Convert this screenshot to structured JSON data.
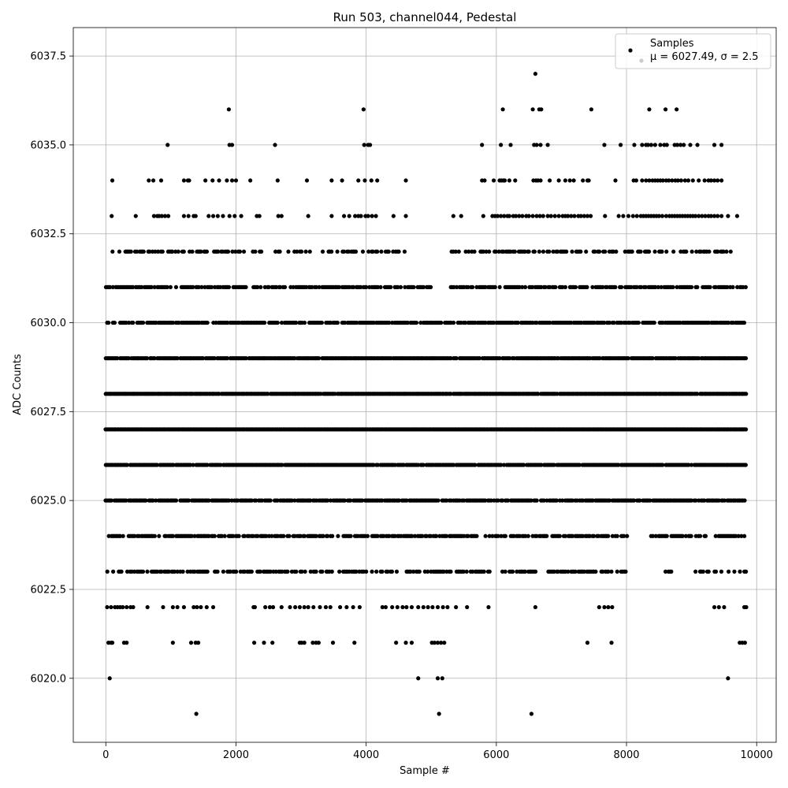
{
  "chart_data": {
    "type": "scatter",
    "title": "Run 503, channel044, Pedestal",
    "xlabel": "Sample #",
    "ylabel": "ADC Counts",
    "xlim": [
      -500,
      10300
    ],
    "ylim": [
      6018.2,
      6038.3
    ],
    "xticks": [
      0,
      2000,
      4000,
      6000,
      8000,
      10000
    ],
    "xtick_labels": [
      "0",
      "2000",
      "4000",
      "6000",
      "8000",
      "10000"
    ],
    "yticks": [
      6020.0,
      6022.5,
      6025.0,
      6027.5,
      6030.0,
      6032.5,
      6035.0,
      6037.5
    ],
    "ytick_labels": [
      "6020.0",
      "6022.5",
      "6025.0",
      "6027.5",
      "6030.0",
      "6032.5",
      "6035.0",
      "6037.5"
    ],
    "grid": true,
    "legend": {
      "position": "top-right",
      "series_label": "Samples",
      "stats_label": "μ = 6027.49, σ = 2.5"
    },
    "series": [
      {
        "name": "Samples",
        "color": "#000000",
        "x_range": [
          0,
          9850
        ],
        "levels": [
          {
            "y": 6019,
            "x": [
              1390,
              5120,
              6540
            ]
          },
          {
            "y": 6020,
            "x": [
              60,
              4800,
              5100,
              5170,
              9560
            ]
          },
          {
            "y": 6021,
            "x": [
              40,
              80,
              100,
              280,
              320,
              1030,
              1310,
              1380,
              1420,
              2280,
              2430,
              2560,
              2980,
              3010,
              3050,
              3180,
              3230,
              3270,
              3490,
              3820,
              4460,
              4610,
              4700,
              5010,
              5050,
              5100,
              5150,
              5200,
              7400,
              7770,
              9740,
              9780,
              9820
            ]
          },
          {
            "y": 6022,
            "x": [
              20,
              80,
              140,
              180,
              220,
              260,
              320,
              380,
              420,
              640,
              880,
              1030,
              1100,
              1200,
              1350,
              1400,
              1460,
              1550,
              1650,
              2270,
              2290,
              2450,
              2520,
              2570,
              2700,
              2830,
              2910,
              2980,
              3050,
              3110,
              3190,
              3290,
              3380,
              3450,
              3600,
              3700,
              3800,
              3900,
              4250,
              4300,
              4400,
              4480,
              4560,
              4620,
              4700,
              4800,
              4880,
              4950,
              5020,
              5100,
              5180,
              5250,
              5380,
              5550,
              5880,
              6600,
              7580,
              7660,
              7720,
              7780,
              9350,
              9420,
              9500,
              9810,
              9840
            ]
          },
          {
            "y": 6023,
            "x_span": [
              0,
              9850
            ],
            "density": 0.62,
            "gaps": [
              [
                5900,
                6080
              ],
              [
                6700,
                6780
              ],
              [
                8000,
                8580
              ],
              [
                8700,
                9000
              ]
            ]
          },
          {
            "y": 6024,
            "x_span": [
              0,
              9850
            ],
            "density": 0.7,
            "gaps": [
              [
                5720,
                5800
              ],
              [
                6150,
                6200
              ],
              [
                8020,
                8380
              ]
            ]
          },
          {
            "y": 6025,
            "x_span": [
              0,
              9850
            ],
            "density": 0.85,
            "gaps": [
              [
                9900,
                9950
              ]
            ]
          },
          {
            "y": 6026,
            "x_span": [
              0,
              9850
            ],
            "density": 0.95,
            "gaps": []
          },
          {
            "y": 6027,
            "x_span": [
              0,
              9850
            ],
            "density": 1.0,
            "gaps": []
          },
          {
            "y": 6028,
            "x_span": [
              0,
              9850
            ],
            "density": 0.98,
            "gaps": []
          },
          {
            "y": 6029,
            "x_span": [
              0,
              9850
            ],
            "density": 0.95,
            "gaps": []
          },
          {
            "y": 6030,
            "x_span": [
              0,
              9850
            ],
            "density": 0.82,
            "gaps": []
          },
          {
            "y": 6031,
            "x_span": [
              0,
              9850
            ],
            "density": 0.68,
            "gaps": [
              [
                1100,
                1150
              ],
              [
                5000,
                5300
              ]
            ]
          },
          {
            "y": 6032,
            "x_span": [
              100,
              9620
            ],
            "density": 0.52,
            "gaps": [
              [
                2400,
                2600
              ],
              [
                4650,
                5300
              ]
            ]
          },
          {
            "y": 6033,
            "x": [
              90,
              460,
              740,
              790,
              820,
              860,
              910,
              960,
              1200,
              1270,
              1350,
              1380,
              1580,
              1650,
              1720,
              1800,
              1900,
              1980,
              2080,
              2320,
              2360,
              2650,
              2700,
              3110,
              3470,
              3660,
              3740,
              3830,
              3880,
              3920,
              3990,
              4030,
              4090,
              4150,
              4420,
              4610,
              5340,
              5460,
              5800,
              5940,
              5980,
              6020,
              6070,
              6120,
              6170,
              6200,
              6260,
              6300,
              6350,
              6400,
              6460,
              6500,
              6560,
              6620,
              6670,
              6720,
              6790,
              6840,
              6900,
              6960,
              7020,
              7060,
              7100,
              7150,
              7200,
              7260,
              7300,
              7350,
              7400,
              7450,
              7670,
              7880,
              7950,
              8030,
              8100,
              8160,
              8220,
              8260,
              8300,
              8340,
              8380,
              8420,
              8460,
              8500,
              8550,
              8610,
              8660,
              8700,
              8740,
              8780,
              8820,
              8860,
              8900,
              8940,
              8980,
              9020,
              9060,
              9110,
              9160,
              9210,
              9260,
              9300,
              9350,
              9400,
              9460,
              9560,
              9700
            ]
          },
          {
            "y": 6034,
            "x": [
              100,
              660,
              730,
              850,
              1200,
              1260,
              1280,
              1530,
              1640,
              1740,
              1860,
              1940,
              2000,
              2220,
              2640,
              3090,
              3470,
              3630,
              3880,
              3980,
              4080,
              4170,
              4610,
              5780,
              5820,
              5960,
              6050,
              6080,
              6110,
              6130,
              6200,
              6290,
              6570,
              6610,
              6640,
              6680,
              6820,
              6960,
              7060,
              7130,
              7190,
              7330,
              7400,
              7420,
              7830,
              8110,
              8150,
              8240,
              8300,
              8350,
              8400,
              8440,
              8480,
              8520,
              8560,
              8610,
              8650,
              8700,
              8750,
              8790,
              8840,
              8900,
              8950,
              9020,
              9110,
              9200,
              9260,
              9300,
              9350,
              9400,
              9460
            ]
          },
          {
            "y": 6035,
            "x": [
              950,
              1900,
              1940,
              2600,
              3970,
              4030,
              4060,
              5780,
              6070,
              6220,
              6580,
              6620,
              6680,
              6790,
              7660,
              7910,
              8120,
              8240,
              8300,
              8330,
              8380,
              8440,
              8520,
              8580,
              8620,
              8740,
              8780,
              8830,
              8880,
              8980,
              9090,
              9350,
              9460
            ]
          },
          {
            "y": 6036,
            "x": [
              1890,
              3960,
              6100,
              6560,
              6660,
              6690,
              7460,
              8350,
              8600,
              8770
            ]
          },
          {
            "y": 6037,
            "x": [
              6600
            ]
          }
        ]
      }
    ]
  }
}
